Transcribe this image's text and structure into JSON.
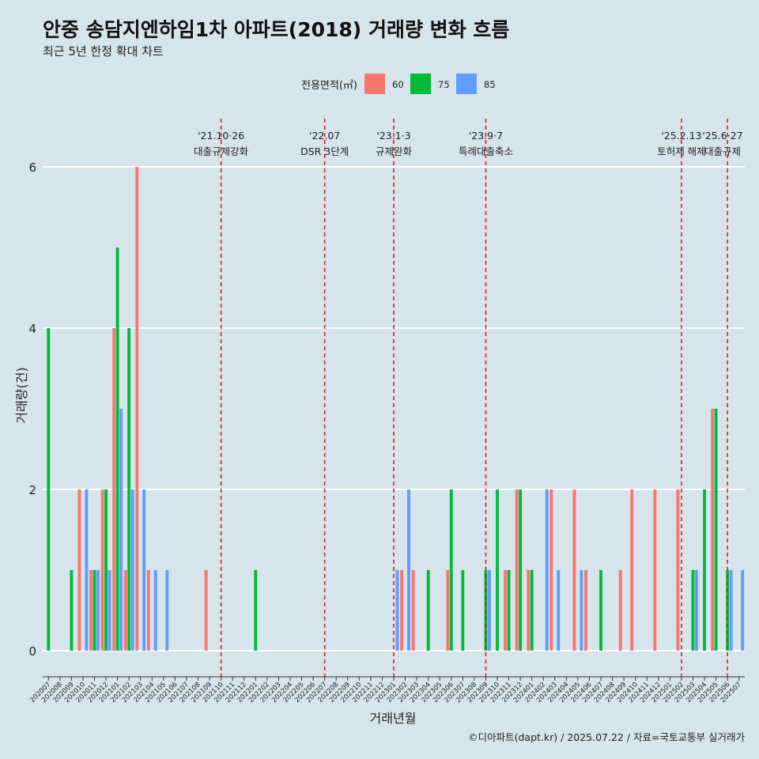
{
  "header": {
    "title": "안중 송담지엔하임1차 아파트(2018) 거래량 변화 흐름",
    "subtitle": "최근 5년 한정 확대 차트"
  },
  "caption": "©디아파트(dapt.kr) / 2025.07.22 / 자료=국토교통부 실거래가",
  "chart_data": {
    "type": "bar",
    "xlabel": "거래년월",
    "ylabel": "거래량(건)",
    "ylim": [
      0,
      6
    ],
    "yticks": [
      0,
      2,
      4,
      6
    ],
    "grid": true,
    "legend": {
      "title": "전용면적(㎡)",
      "placement": "top"
    },
    "categories": [
      "202007",
      "202008",
      "202009",
      "202010",
      "202011",
      "202012",
      "202101",
      "202102",
      "202103",
      "202104",
      "202105",
      "202106",
      "202107",
      "202108",
      "202109",
      "202110",
      "202111",
      "202112",
      "202201",
      "202202",
      "202203",
      "202204",
      "202205",
      "202206",
      "202207",
      "202208",
      "202209",
      "202210",
      "202211",
      "202212",
      "202301",
      "202302",
      "202303",
      "202304",
      "202305",
      "202306",
      "202307",
      "202308",
      "202309",
      "202310",
      "202311",
      "202312",
      "202401",
      "202402",
      "202403",
      "202404",
      "202405",
      "202406",
      "202407",
      "202408",
      "202409",
      "202410",
      "202411",
      "202412",
      "202501",
      "202502",
      "202503",
      "202504",
      "202505",
      "202506",
      "202507"
    ],
    "series": [
      {
        "name": "60",
        "color": "#f8766d",
        "values": [
          0,
          0,
          0,
          2,
          1,
          2,
          4,
          1,
          6,
          1,
          0,
          0,
          0,
          0,
          1,
          0,
          0,
          0,
          0,
          0,
          0,
          0,
          0,
          0,
          0,
          0,
          0,
          0,
          0,
          0,
          0,
          1,
          1,
          0,
          0,
          1,
          0,
          0,
          0,
          0,
          1,
          2,
          1,
          0,
          2,
          0,
          2,
          1,
          0,
          0,
          1,
          2,
          0,
          2,
          0,
          2,
          0,
          0,
          3,
          0,
          0
        ]
      },
      {
        "name": "75",
        "color": "#00ba38",
        "values": [
          4,
          0,
          1,
          0,
          1,
          2,
          5,
          4,
          0,
          0,
          0,
          0,
          0,
          0,
          0,
          0,
          0,
          0,
          1,
          0,
          0,
          0,
          0,
          0,
          0,
          0,
          0,
          0,
          0,
          0,
          0,
          0,
          0,
          1,
          0,
          2,
          1,
          0,
          1,
          2,
          1,
          2,
          1,
          0,
          0,
          0,
          0,
          0,
          1,
          0,
          0,
          0,
          0,
          0,
          0,
          0,
          1,
          2,
          3,
          1,
          0
        ]
      },
      {
        "name": "85",
        "color": "#619cff",
        "values": [
          0,
          0,
          0,
          2,
          1,
          1,
          3,
          2,
          2,
          1,
          1,
          0,
          0,
          0,
          0,
          0,
          0,
          0,
          0,
          0,
          0,
          0,
          0,
          0,
          0,
          0,
          0,
          0,
          0,
          0,
          1,
          2,
          0,
          0,
          0,
          0,
          0,
          0,
          1,
          0,
          0,
          0,
          0,
          2,
          1,
          0,
          1,
          0,
          0,
          0,
          0,
          0,
          0,
          0,
          0,
          0,
          1,
          0,
          0,
          1,
          1
        ]
      }
    ],
    "annotations": [
      {
        "month": "202110",
        "date": "'21.10·26",
        "text": "대출규제강화"
      },
      {
        "month": "202207",
        "date": "'22.07",
        "text": "DSR 3단계"
      },
      {
        "month": "202301",
        "date": "'23.1·3",
        "text": "규제완화"
      },
      {
        "month": "202309",
        "date": "'23.9·7",
        "text": "특례대출축소"
      },
      {
        "month": "202502",
        "date": "'25.2.13",
        "text": "토허제 해제"
      },
      {
        "month": "202506",
        "date": "'25.6·27",
        "text": "대출규제"
      }
    ]
  }
}
